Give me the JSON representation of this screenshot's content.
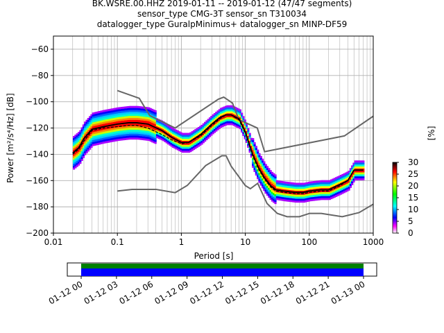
{
  "chart_data": {
    "type": "heatmap",
    "title_lines": [
      "BK.WSRE.00.HHZ   2019-01-11 -- 2019-01-12  (47/47 segments)",
      "sensor_type CMG-3T sensor_sn T310034",
      "datalogger_type GuralpMinimus+ datalogger_sn MINP-DF59"
    ],
    "xlabel": "Period [s]",
    "ylabel": "Power [m²/s⁴/Hz] [dB]",
    "x_scale": "log",
    "xlim": [
      0.01,
      1000
    ],
    "ylim": [
      -200,
      -50
    ],
    "x_tick_labels": [
      "0.01",
      "0.1",
      "1",
      "10",
      "100",
      "1000"
    ],
    "y_ticks": [
      -60,
      -80,
      -100,
      -120,
      -140,
      -160,
      -180,
      -200
    ],
    "grid": true,
    "colorbar": {
      "label": "[%]",
      "range": [
        0,
        30
      ],
      "ticks": [
        0,
        5,
        10,
        15,
        20,
        25,
        30
      ]
    },
    "mean_curve": {
      "period": [
        0.02,
        0.025,
        0.03,
        0.04,
        0.06,
        0.1,
        0.15,
        0.2,
        0.3,
        0.5,
        0.7,
        1.0,
        1.3,
        2,
        3,
        4,
        5,
        6,
        8,
        10,
        13,
        16,
        20,
        25,
        30,
        40,
        60,
        80,
        100,
        150,
        200,
        300,
        400,
        500,
        700
      ],
      "power": [
        -139,
        -135,
        -128,
        -121,
        -119,
        -117,
        -116,
        -116,
        -117,
        -122,
        -127,
        -131,
        -131,
        -125,
        -117,
        -112,
        -110,
        -110,
        -113,
        -123,
        -140,
        -150,
        -158,
        -164,
        -167,
        -168,
        -169,
        -169,
        -168,
        -167,
        -167,
        -163,
        -160,
        -152,
        -152
      ]
    },
    "mode_curve": {
      "period": [
        0.02,
        0.025,
        0.03,
        0.04,
        0.06,
        0.1,
        0.15,
        0.2,
        0.3,
        0.5,
        0.7,
        1.0,
        1.3,
        2,
        3,
        4,
        5,
        6,
        8,
        10,
        13,
        16,
        20,
        25,
        30,
        40,
        60,
        80,
        100,
        150,
        200,
        300,
        400,
        500,
        700
      ],
      "power": [
        -140,
        -136,
        -130,
        -122,
        -120,
        -119,
        -118,
        -118,
        -120,
        -125,
        -129,
        -132,
        -131,
        -126,
        -118,
        -113,
        -110,
        -110,
        -114,
        -124,
        -141,
        -151,
        -159,
        -165,
        -168,
        -169,
        -170,
        -170,
        -169,
        -168,
        -168,
        -164,
        -160,
        -152,
        -152
      ]
    },
    "nhnm": {
      "period": [
        0.1,
        0.22,
        0.32,
        0.8,
        3.8,
        4.6,
        6.3,
        7.9,
        15.4,
        20,
        354,
        1000
      ],
      "power": [
        -91.5,
        -97.4,
        -110.5,
        -120,
        -98,
        -96.5,
        -101,
        -113.5,
        -120,
        -138,
        -126,
        -111
      ]
    },
    "nlnm": {
      "period": [
        0.1,
        0.17,
        0.4,
        0.8,
        1.24,
        2.4,
        4.3,
        5.0,
        6.0,
        10,
        12,
        15.6,
        21.9,
        31.6,
        45,
        70,
        101,
        154,
        328,
        600,
        1000
      ],
      "power": [
        -168,
        -166.7,
        -166.7,
        -169.2,
        -163.7,
        -148.6,
        -141.1,
        -141.1,
        -149,
        -163.8,
        -166.2,
        -162.1,
        -177.5,
        -185,
        -187.5,
        -187.5,
        -185,
        -185,
        -187.5,
        -184.4,
        -178
      ]
    },
    "timeline": {
      "tick_labels": [
        "01-12 00",
        "01-12 03",
        "01-12 06",
        "01-12 09",
        "01-12 12",
        "01-12 15",
        "01-12 18",
        "01-12 21",
        "01-13 00"
      ],
      "coverage_start_fraction": 0.0,
      "coverage_end_fraction": 1.0,
      "colors": {
        "data": "#0000ff",
        "gaps_free": "#008000"
      }
    },
    "colors": {
      "noise_model": "#666666",
      "mean": "#000000",
      "mode": "#000000"
    }
  }
}
